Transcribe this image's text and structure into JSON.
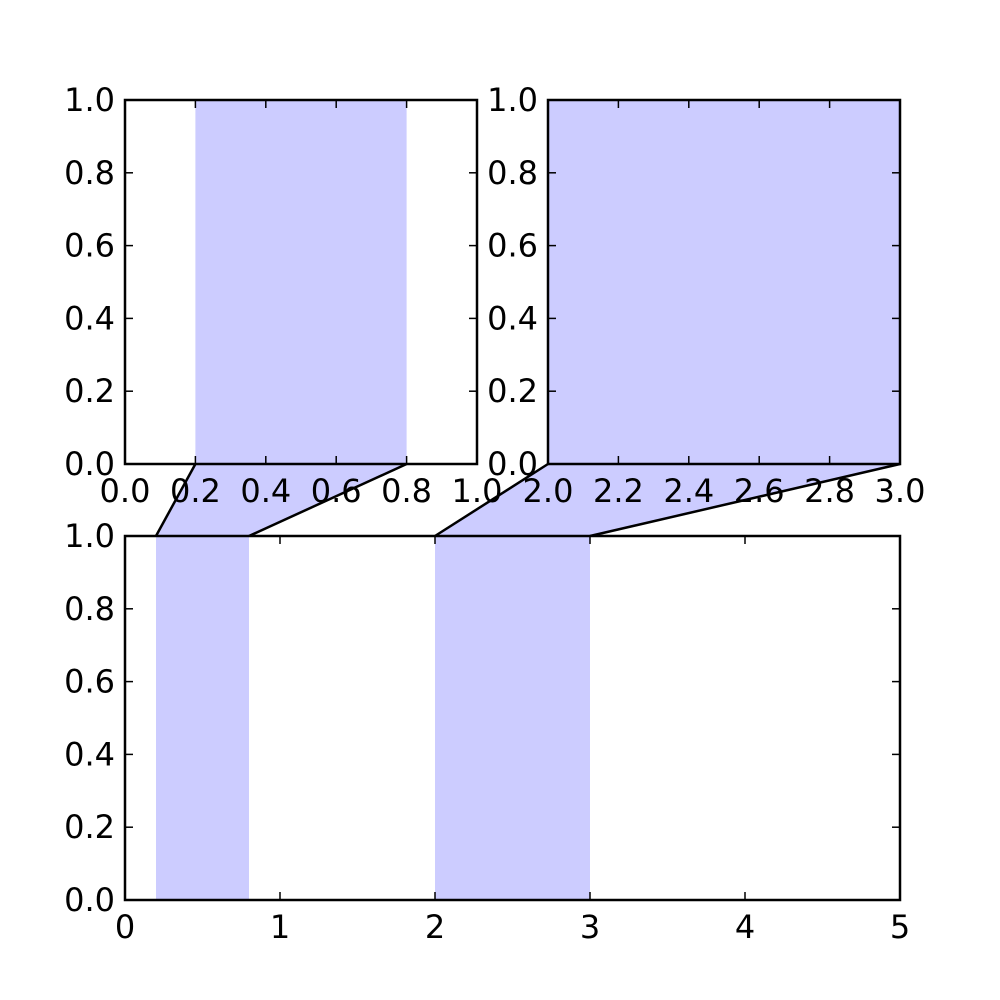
{
  "chart_data": [
    {
      "id": "top-left",
      "type": "area",
      "title": "",
      "xlabel": "",
      "ylabel": "",
      "xlim": [
        0.0,
        1.0
      ],
      "ylim": [
        0.0,
        1.0
      ],
      "xticks": [
        "0.0",
        "0.2",
        "0.4",
        "0.6",
        "0.8",
        "1.0"
      ],
      "yticks": [
        "0.0",
        "0.2",
        "0.4",
        "0.6",
        "0.8",
        "1.0"
      ],
      "spans": [
        {
          "x0": 0.2,
          "x1": 0.8
        }
      ]
    },
    {
      "id": "top-right",
      "type": "area",
      "title": "",
      "xlabel": "",
      "ylabel": "",
      "xlim": [
        2.0,
        3.0
      ],
      "ylim": [
        0.0,
        1.0
      ],
      "xticks": [
        "2.0",
        "2.2",
        "2.4",
        "2.6",
        "2.8",
        "3.0"
      ],
      "yticks": [
        "0.0",
        "0.2",
        "0.4",
        "0.6",
        "0.8",
        "1.0"
      ],
      "spans": [
        {
          "x0": 2.0,
          "x1": 3.0
        }
      ]
    },
    {
      "id": "bottom",
      "type": "area",
      "title": "",
      "xlabel": "",
      "ylabel": "",
      "xlim": [
        0,
        5
      ],
      "ylim": [
        0.0,
        1.0
      ],
      "xticks": [
        "0",
        "1",
        "2",
        "3",
        "4",
        "5"
      ],
      "yticks": [
        "0.0",
        "0.2",
        "0.4",
        "0.6",
        "0.8",
        "1.0"
      ],
      "spans": [
        {
          "x0": 0.2,
          "x1": 0.8
        },
        {
          "x0": 2.0,
          "x1": 3.0
        }
      ]
    }
  ],
  "connectors": [
    {
      "from": "top-left",
      "to": "bottom",
      "x0": 0.2,
      "x1": 0.8
    },
    {
      "from": "top-right",
      "to": "bottom",
      "x0": 2.0,
      "x1": 3.0
    }
  ],
  "colors": {
    "span_fill": "#ccccff",
    "axes_edge": "#000000",
    "background": "#ffffff"
  },
  "grid": false
}
